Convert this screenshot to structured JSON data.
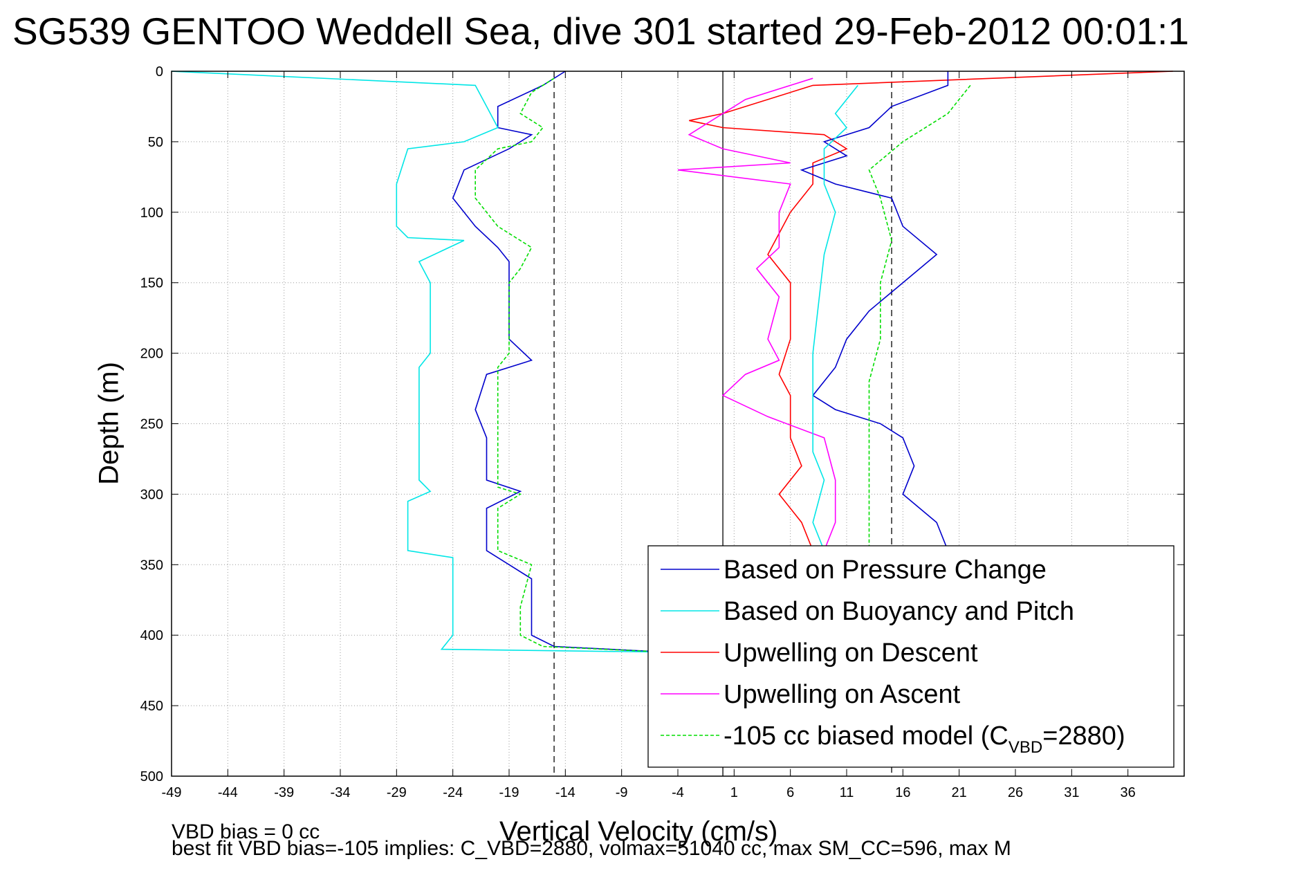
{
  "title": "SG539 GENTOO Weddell Sea, dive 301 started 29-Feb-2012 00:01:1",
  "footer": {
    "line1": "VBD bias = 0 cc",
    "line2": "best fit VBD bias=-105 implies: C_VBD=2880, volmax=51040 cc, max SM_CC=596, max M"
  },
  "legend": {
    "entries": [
      "Based on Pressure Change",
      "Based on Buoyancy and Pitch",
      "Upwelling on Descent",
      "Upwelling on Ascent",
      "-105 cc biased model (C",
      "=2880)"
    ],
    "subscript": "VBD"
  },
  "chart_data": {
    "type": "line",
    "title": "SG539 GENTOO Weddell Sea, dive 301 started 29-Feb-2012 00:01:1",
    "xlabel": "Vertical Velocity (cm/s)",
    "ylabel": "Depth (m)",
    "xlim": [
      -49,
      41
    ],
    "ylim": [
      0,
      500
    ],
    "y_reversed": true,
    "grid": true,
    "legend_position": "bottom-right",
    "x_ticks": [
      -49,
      -44,
      -39,
      -34,
      -29,
      -24,
      -19,
      -14,
      -9,
      -4,
      1,
      6,
      11,
      16,
      21,
      26,
      31,
      36
    ],
    "y_ticks": [
      0,
      50,
      100,
      150,
      200,
      250,
      300,
      350,
      400,
      450,
      500
    ],
    "reference_lines": {
      "dashed_x": [
        -15,
        15
      ],
      "solid_x": [
        0
      ]
    },
    "series": [
      {
        "name": "Based on Pressure Change",
        "color": "#0000cc",
        "points": [
          [
            -14,
            0
          ],
          [
            -16,
            10
          ],
          [
            -20,
            25
          ],
          [
            -20,
            40
          ],
          [
            -17,
            45
          ],
          [
            -19,
            55
          ],
          [
            -23,
            70
          ],
          [
            -24,
            90
          ],
          [
            -22,
            110
          ],
          [
            -20,
            125
          ],
          [
            -19,
            135
          ],
          [
            -19,
            150
          ],
          [
            -19,
            190
          ],
          [
            -17,
            205
          ],
          [
            -21,
            215
          ],
          [
            -22,
            240
          ],
          [
            -21,
            260
          ],
          [
            -21,
            290
          ],
          [
            -18,
            298
          ],
          [
            -21,
            310
          ],
          [
            -21,
            340
          ],
          [
            -19,
            350
          ],
          [
            -17,
            360
          ],
          [
            -17,
            400
          ],
          [
            -15,
            408
          ],
          [
            -5,
            412
          ]
        ]
      },
      {
        "name": "Based on Buoyancy and Pitch",
        "color": "#00e6e6",
        "points": [
          [
            -49,
            0
          ],
          [
            -22,
            10
          ],
          [
            -21,
            25
          ],
          [
            -20,
            40
          ],
          [
            -23,
            50
          ],
          [
            -28,
            55
          ],
          [
            -29,
            80
          ],
          [
            -29,
            110
          ],
          [
            -28,
            118
          ],
          [
            -23,
            120
          ],
          [
            -27,
            135
          ],
          [
            -26,
            150
          ],
          [
            -26,
            200
          ],
          [
            -27,
            210
          ],
          [
            -27,
            240
          ],
          [
            -27,
            290
          ],
          [
            -26,
            298
          ],
          [
            -28,
            305
          ],
          [
            -28,
            340
          ],
          [
            -24,
            345
          ],
          [
            -24,
            400
          ],
          [
            -25,
            410
          ],
          [
            -5,
            412
          ]
        ]
      },
      {
        "name": "Upwelling on Descent",
        "color": "#ff0000",
        "points": [
          [
            40,
            0
          ],
          [
            8,
            10
          ],
          [
            0,
            30
          ],
          [
            -3,
            35
          ],
          [
            0,
            40
          ],
          [
            9,
            45
          ],
          [
            11,
            55
          ],
          [
            8,
            65
          ],
          [
            8,
            80
          ],
          [
            6,
            100
          ],
          [
            5,
            115
          ],
          [
            4,
            130
          ],
          [
            6,
            150
          ],
          [
            6,
            190
          ],
          [
            5,
            215
          ],
          [
            6,
            230
          ],
          [
            6,
            260
          ],
          [
            7,
            280
          ],
          [
            5,
            300
          ],
          [
            7,
            320
          ],
          [
            8,
            340
          ]
        ]
      },
      {
        "name": "Upwelling on Ascent",
        "color": "#ff00ff",
        "points": [
          [
            8,
            5
          ],
          [
            2,
            20
          ],
          [
            -3,
            45
          ],
          [
            0,
            55
          ],
          [
            6,
            65
          ],
          [
            -4,
            70
          ],
          [
            6,
            80
          ],
          [
            5,
            100
          ],
          [
            5,
            125
          ],
          [
            3,
            140
          ],
          [
            5,
            160
          ],
          [
            4,
            190
          ],
          [
            5,
            205
          ],
          [
            2,
            215
          ],
          [
            0,
            230
          ],
          [
            4,
            245
          ],
          [
            9,
            260
          ],
          [
            10,
            290
          ],
          [
            10,
            320
          ],
          [
            9,
            340
          ]
        ]
      },
      {
        "name": "-105 cc biased model (C_VBD=2880)",
        "color": "#00dd00",
        "points": [
          [
            -15,
            5
          ],
          [
            -17,
            15
          ],
          [
            -18,
            30
          ],
          [
            -16,
            40
          ],
          [
            -17,
            50
          ],
          [
            -20,
            55
          ],
          [
            -22,
            70
          ],
          [
            -22,
            90
          ],
          [
            -20,
            110
          ],
          [
            -17,
            125
          ],
          [
            -18,
            140
          ],
          [
            -19,
            150
          ],
          [
            -19,
            200
          ],
          [
            -20,
            210
          ],
          [
            -20,
            250
          ],
          [
            -20,
            295
          ],
          [
            -18,
            300
          ],
          [
            -20,
            310
          ],
          [
            -20,
            340
          ],
          [
            -17,
            350
          ],
          [
            -18,
            380
          ],
          [
            -18,
            400
          ],
          [
            -16,
            408
          ],
          [
            -5,
            412
          ]
        ]
      },
      {
        "name": "Based on Pressure Change (ascent)",
        "color": "#0000cc",
        "points": [
          [
            20,
            0
          ],
          [
            20,
            10
          ],
          [
            15,
            25
          ],
          [
            13,
            40
          ],
          [
            9,
            50
          ],
          [
            11,
            60
          ],
          [
            7,
            70
          ],
          [
            10,
            80
          ],
          [
            15,
            90
          ],
          [
            16,
            110
          ],
          [
            19,
            130
          ],
          [
            16,
            150
          ],
          [
            13,
            170
          ],
          [
            11,
            190
          ],
          [
            10,
            210
          ],
          [
            8,
            230
          ],
          [
            10,
            240
          ],
          [
            14,
            250
          ],
          [
            16,
            260
          ],
          [
            17,
            280
          ],
          [
            16,
            300
          ],
          [
            19,
            320
          ],
          [
            20,
            340
          ]
        ]
      },
      {
        "name": "Based on Buoyancy and Pitch (ascent)",
        "color": "#00e6e6",
        "points": [
          [
            12,
            10
          ],
          [
            10,
            30
          ],
          [
            11,
            40
          ],
          [
            9,
            55
          ],
          [
            9,
            80
          ],
          [
            10,
            100
          ],
          [
            9,
            130
          ],
          [
            8,
            200
          ],
          [
            8,
            240
          ],
          [
            8,
            270
          ],
          [
            9,
            290
          ],
          [
            8,
            320
          ],
          [
            9,
            340
          ]
        ]
      },
      {
        "name": "-105 cc biased model (ascent)",
        "color": "#00dd00",
        "points": [
          [
            22,
            10
          ],
          [
            20,
            30
          ],
          [
            16,
            50
          ],
          [
            13,
            70
          ],
          [
            14,
            90
          ],
          [
            15,
            120
          ],
          [
            14,
            150
          ],
          [
            14,
            190
          ],
          [
            13,
            220
          ],
          [
            13,
            260
          ],
          [
            13,
            300
          ],
          [
            13,
            340
          ]
        ]
      }
    ]
  }
}
